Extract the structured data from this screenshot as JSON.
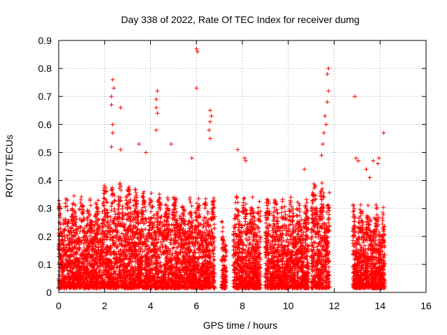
{
  "chart_data": {
    "type": "scatter",
    "title": "Day 338 of 2022, Rate Of TEC Index for receiver dumg",
    "xlabel": "GPS time / hours",
    "ylabel": "ROTI / TECUs",
    "xlim": [
      0,
      16
    ],
    "ylim": [
      0,
      0.9
    ],
    "xticks": [
      0,
      2,
      4,
      6,
      8,
      10,
      12,
      14,
      16
    ],
    "yticks": [
      0,
      0.1,
      0.2,
      0.3,
      0.4,
      0.5,
      0.6,
      0.7,
      0.8,
      0.9
    ],
    "grid": true,
    "marker": "+",
    "colors": {
      "points": "#ff0000"
    },
    "clusters": [
      {
        "x": [
          0.0,
          1.9
        ],
        "typical_max": 0.33
      },
      {
        "x": [
          1.9,
          3.4
        ],
        "typical_max": 0.38
      },
      {
        "x": [
          3.4,
          5.2
        ],
        "typical_max": 0.35
      },
      {
        "x": [
          5.2,
          6.8
        ],
        "typical_max": 0.33
      },
      {
        "x": [
          7.1,
          7.3
        ],
        "typical_max": 0.25
      },
      {
        "x": [
          7.6,
          8.8
        ],
        "typical_max": 0.33
      },
      {
        "x": [
          9.0,
          10.9
        ],
        "typical_max": 0.33
      },
      {
        "x": [
          11.0,
          11.8
        ],
        "typical_max": 0.38
      },
      {
        "x": [
          12.8,
          14.2
        ],
        "typical_max": 0.3
      }
    ],
    "peaks": [
      {
        "x": 2.35,
        "y": 0.76
      },
      {
        "x": 2.4,
        "y": 0.73
      },
      {
        "x": 2.3,
        "y": 0.7
      },
      {
        "x": 2.3,
        "y": 0.67
      },
      {
        "x": 2.35,
        "y": 0.6
      },
      {
        "x": 2.35,
        "y": 0.57
      },
      {
        "x": 2.7,
        "y": 0.66
      },
      {
        "x": 2.3,
        "y": 0.52
      },
      {
        "x": 2.7,
        "y": 0.51
      },
      {
        "x": 3.5,
        "y": 0.53
      },
      {
        "x": 3.8,
        "y": 0.5
      },
      {
        "x": 4.3,
        "y": 0.72
      },
      {
        "x": 4.25,
        "y": 0.69
      },
      {
        "x": 4.25,
        "y": 0.66
      },
      {
        "x": 4.3,
        "y": 0.64
      },
      {
        "x": 4.25,
        "y": 0.58
      },
      {
        "x": 4.9,
        "y": 0.53
      },
      {
        "x": 6.0,
        "y": 0.87
      },
      {
        "x": 6.05,
        "y": 0.86
      },
      {
        "x": 6.0,
        "y": 0.73
      },
      {
        "x": 6.6,
        "y": 0.65
      },
      {
        "x": 6.65,
        "y": 0.63
      },
      {
        "x": 6.6,
        "y": 0.61
      },
      {
        "x": 6.55,
        "y": 0.58
      },
      {
        "x": 6.6,
        "y": 0.55
      },
      {
        "x": 5.8,
        "y": 0.48
      },
      {
        "x": 7.8,
        "y": 0.51
      },
      {
        "x": 8.1,
        "y": 0.48
      },
      {
        "x": 8.15,
        "y": 0.47
      },
      {
        "x": 11.75,
        "y": 0.8
      },
      {
        "x": 11.7,
        "y": 0.78
      },
      {
        "x": 11.75,
        "y": 0.72
      },
      {
        "x": 11.7,
        "y": 0.68
      },
      {
        "x": 11.6,
        "y": 0.63
      },
      {
        "x": 11.65,
        "y": 0.6
      },
      {
        "x": 11.55,
        "y": 0.57
      },
      {
        "x": 11.5,
        "y": 0.53
      },
      {
        "x": 11.45,
        "y": 0.49
      },
      {
        "x": 10.7,
        "y": 0.44
      },
      {
        "x": 12.9,
        "y": 0.7
      },
      {
        "x": 14.15,
        "y": 0.57
      },
      {
        "x": 12.95,
        "y": 0.48
      },
      {
        "x": 13.05,
        "y": 0.47
      },
      {
        "x": 13.7,
        "y": 0.47
      },
      {
        "x": 13.95,
        "y": 0.48
      },
      {
        "x": 13.9,
        "y": 0.46
      },
      {
        "x": 13.4,
        "y": 0.44
      },
      {
        "x": 13.55,
        "y": 0.41
      }
    ]
  }
}
